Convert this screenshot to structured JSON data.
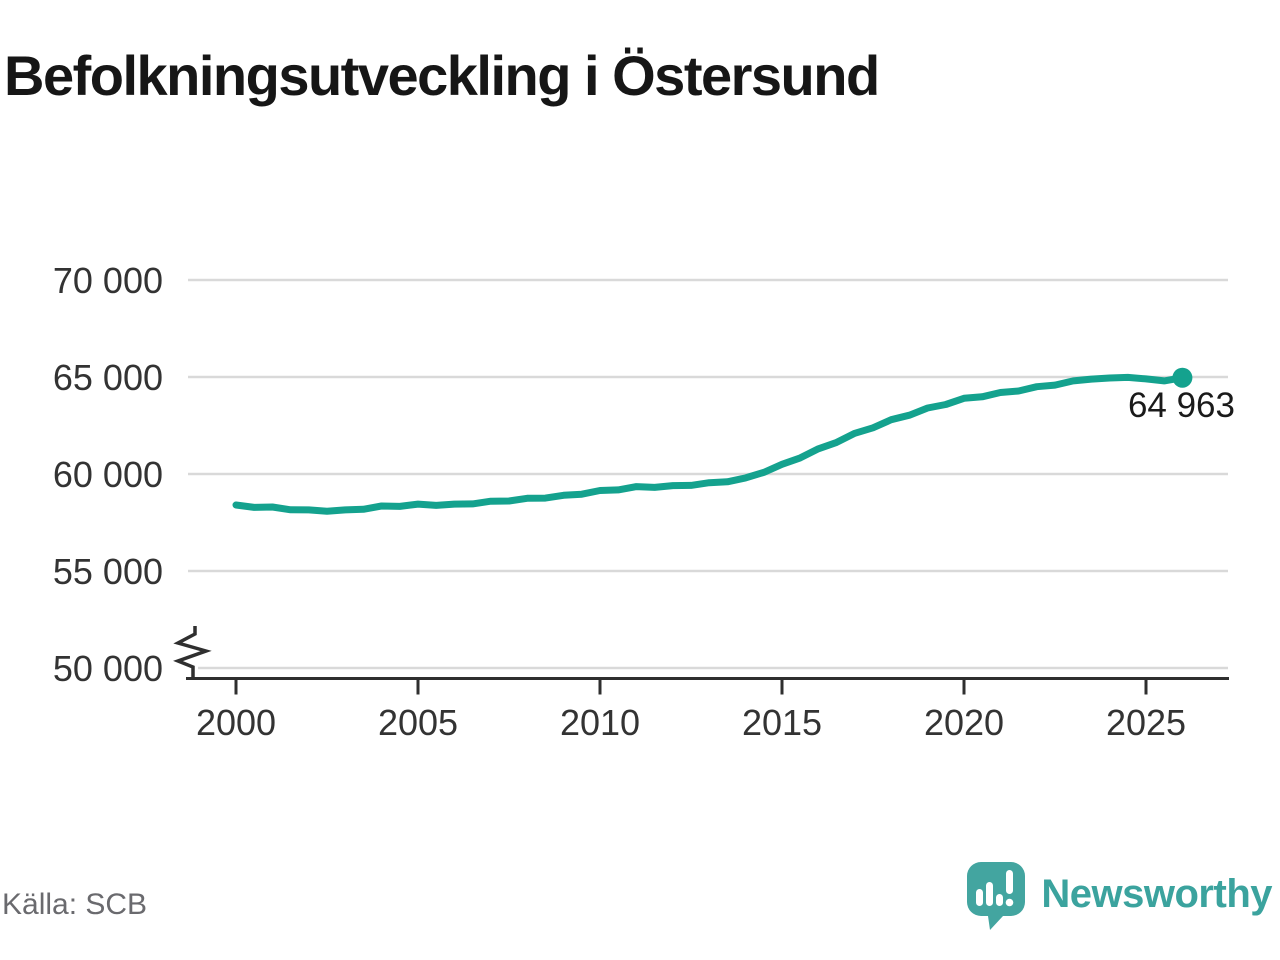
{
  "title": "Befolkningsutveckling i Östersund",
  "source": "Källa: SCB",
  "branding": {
    "name": "Newsworthy"
  },
  "colors": {
    "line": "#14a28e",
    "point": "#14a28e",
    "grid": "#d9d9d9",
    "axis": "#2f2f2f",
    "tick_label": "#333333",
    "title": "#161616",
    "source": "#6a6a6e",
    "end_label": "#1a1a1a",
    "logo": "#43a5a0",
    "logo_text": "#3ba39e"
  },
  "chart_data": {
    "type": "line",
    "title": "Befolkningsutveckling i Östersund",
    "xlabel": "",
    "ylabel": "",
    "x_ticks": [
      2000,
      2005,
      2010,
      2015,
      2020,
      2025
    ],
    "y_ticks": [
      {
        "value": 50000,
        "label": "50 000"
      },
      {
        "value": 55000,
        "label": "55 000"
      },
      {
        "value": 60000,
        "label": "60 000"
      },
      {
        "value": 65000,
        "label": "65 000"
      },
      {
        "value": 70000,
        "label": "70 000"
      }
    ],
    "ylim": [
      50000,
      70000
    ],
    "xlim": [
      1998.6,
      2027.3
    ],
    "grid": "horizontal",
    "y_axis_break": true,
    "legend": "none",
    "end_label": "64 963",
    "end_value": 64963,
    "series": [
      {
        "name": "Befolkning",
        "points": [
          [
            2000.0,
            58400
          ],
          [
            2000.5,
            58280
          ],
          [
            2001.0,
            58300
          ],
          [
            2001.5,
            58155
          ],
          [
            2002.0,
            58150
          ],
          [
            2002.5,
            58080
          ],
          [
            2003.0,
            58150
          ],
          [
            2003.5,
            58180
          ],
          [
            2004.0,
            58350
          ],
          [
            2004.5,
            58330
          ],
          [
            2005.0,
            58450
          ],
          [
            2005.5,
            58380
          ],
          [
            2006.0,
            58450
          ],
          [
            2006.5,
            58460
          ],
          [
            2007.0,
            58600
          ],
          [
            2007.5,
            58610
          ],
          [
            2008.0,
            58750
          ],
          [
            2008.5,
            58760
          ],
          [
            2009.0,
            58900
          ],
          [
            2009.5,
            58960
          ],
          [
            2010.0,
            59150
          ],
          [
            2010.5,
            59180
          ],
          [
            2011.0,
            59350
          ],
          [
            2011.5,
            59310
          ],
          [
            2012.0,
            59400
          ],
          [
            2012.5,
            59410
          ],
          [
            2013.0,
            59550
          ],
          [
            2013.5,
            59600
          ],
          [
            2014.0,
            59800
          ],
          [
            2014.5,
            60080
          ],
          [
            2015.0,
            60500
          ],
          [
            2015.5,
            60830
          ],
          [
            2016.0,
            61300
          ],
          [
            2016.5,
            61630
          ],
          [
            2017.0,
            62100
          ],
          [
            2017.5,
            62380
          ],
          [
            2018.0,
            62800
          ],
          [
            2018.5,
            63030
          ],
          [
            2019.0,
            63400
          ],
          [
            2019.5,
            63580
          ],
          [
            2020.0,
            63900
          ],
          [
            2020.5,
            63980
          ],
          [
            2021.0,
            64200
          ],
          [
            2021.5,
            64280
          ],
          [
            2022.0,
            64500
          ],
          [
            2022.5,
            64580
          ],
          [
            2023.0,
            64800
          ],
          [
            2023.5,
            64890
          ],
          [
            2024.0,
            64950
          ],
          [
            2024.5,
            64980
          ],
          [
            2025.0,
            64900
          ],
          [
            2025.5,
            64800
          ],
          [
            2026.0,
            64963
          ]
        ]
      }
    ]
  }
}
